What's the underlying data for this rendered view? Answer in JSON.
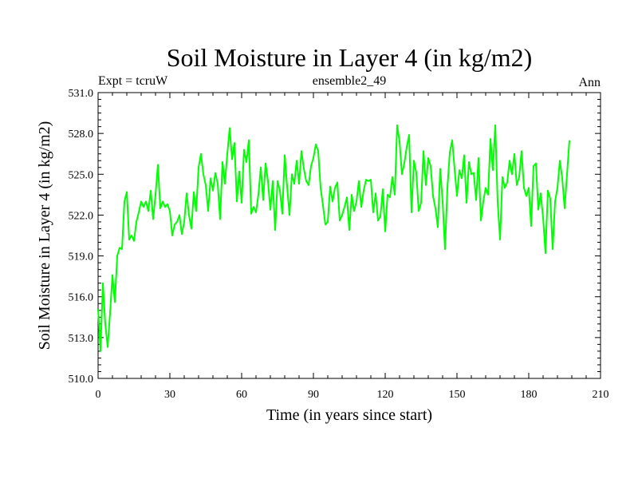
{
  "chart_data": {
    "type": "line",
    "title": "Soil Moisture in Layer 4 (in kg/m2)",
    "subtitle_left": "Expt = tcruW",
    "subtitle_center": "ensemble2_49",
    "subtitle_right": "Ann",
    "xlabel": "Time (in years since start)",
    "ylabel": "Soil Moisture in Layer 4 (in kg/m2)",
    "xlim": [
      0,
      210
    ],
    "ylim": [
      510.0,
      531.0
    ],
    "xticks": [
      0,
      30,
      60,
      90,
      120,
      150,
      180,
      210
    ],
    "xtick_labels": [
      "0",
      "30",
      "60",
      "90",
      "120",
      "150",
      "180",
      "210"
    ],
    "yticks": [
      510,
      513,
      516,
      519,
      522,
      525,
      528,
      531
    ],
    "ytick_labels": [
      "510.0",
      "513.0",
      "516.0",
      "519.0",
      "522.0",
      "525.0",
      "528.0",
      "531.0"
    ],
    "grid": false,
    "series": [
      {
        "name": "ensemble2_49",
        "color": "#00ff00",
        "x_start": 0,
        "x_step": 1,
        "values": [
          515.1,
          512.0,
          517.0,
          514.0,
          512.3,
          514.8,
          517.6,
          515.6,
          519.0,
          519.6,
          519.5,
          523.0,
          523.7,
          520.2,
          520.5,
          520.1,
          521.5,
          522.2,
          523.0,
          522.6,
          523.0,
          522.3,
          523.8,
          521.7,
          523.5,
          525.7,
          522.5,
          523.0,
          522.6,
          522.8,
          522.3,
          520.5,
          521.3,
          521.5,
          522.0,
          520.6,
          521.5,
          523.6,
          522.0,
          521.0,
          523.7,
          522.3,
          525.5,
          526.5,
          525.0,
          524.2,
          522.3,
          524.7,
          523.8,
          525.1,
          524.3,
          521.7,
          525.9,
          524.3,
          526.5,
          528.4,
          526.1,
          527.3,
          523.0,
          525.2,
          522.9,
          526.8,
          525.9,
          527.5,
          522.1,
          522.6,
          522.2,
          523.5,
          525.5,
          523.1,
          525.8,
          524.5,
          522.4,
          524.5,
          520.9,
          524.5,
          523.8,
          522.1,
          526.4,
          524.1,
          522.0,
          525.0,
          524.3,
          526.0,
          524.3,
          526.7,
          525.4,
          524.5,
          524.2,
          525.6,
          526.2,
          527.2,
          526.7,
          524.0,
          522.7,
          521.3,
          521.5,
          524.1,
          523.0,
          524.0,
          524.4,
          521.6,
          522.0,
          522.6,
          523.3,
          520.9,
          523.5,
          522.3,
          523.0,
          524.5,
          522.6,
          523.8,
          524.6,
          524.5,
          524.6,
          522.2,
          523.6,
          521.6,
          521.9,
          523.9,
          520.8,
          523.5,
          523.3,
          524.8,
          523.5,
          528.6,
          527.4,
          525.0,
          525.8,
          527.0,
          527.9,
          522.2,
          526.0,
          525.1,
          522.3,
          522.9,
          526.7,
          524.2,
          526.2,
          525.6,
          523.4,
          522.5,
          521.1,
          525.4,
          523.0,
          519.5,
          524.0,
          526.6,
          527.5,
          525.4,
          523.4,
          525.3,
          524.7,
          526.4,
          522.9,
          525.9,
          525.0,
          525.1,
          523.1,
          526.2,
          521.6,
          523.0,
          524.0,
          523.5,
          527.6,
          525.3,
          528.6,
          523.0,
          520.2,
          524.8,
          524.0,
          524.4,
          526.0,
          525.0,
          526.5,
          524.2,
          524.8,
          526.7,
          524.0,
          523.4,
          524.0,
          521.2,
          525.6,
          525.8,
          522.4,
          523.6,
          521.8,
          519.2,
          523.8,
          523.2,
          519.5,
          523.0,
          524.0,
          526.0,
          524.7,
          522.5,
          525.0,
          527.5
        ]
      }
    ]
  }
}
